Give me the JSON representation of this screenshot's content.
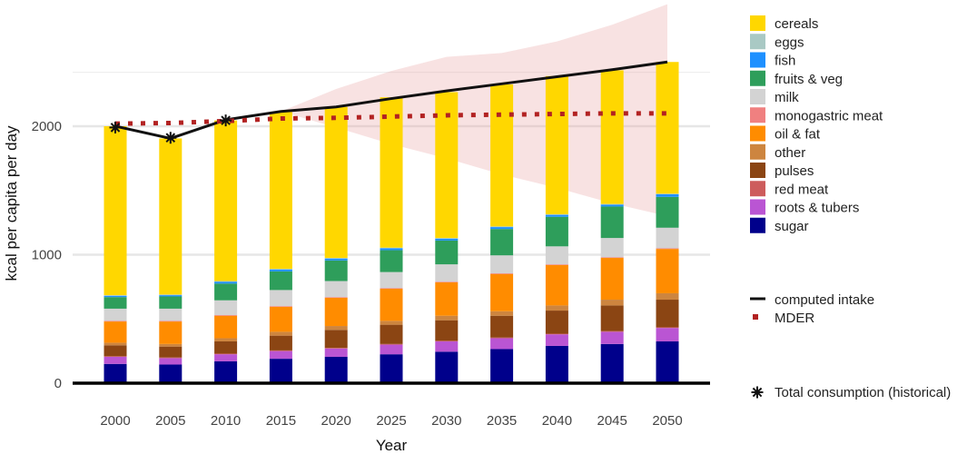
{
  "chart_data": {
    "type": "bar",
    "xlabel": "Year",
    "ylabel": "kcal per capita per day",
    "ylim": [
      0,
      2500
    ],
    "yticks": [
      0,
      1000,
      2000
    ],
    "grid": true,
    "legend_position": "right",
    "categories": [
      "2000",
      "2005",
      "2010",
      "2015",
      "2020",
      "2025",
      "2030",
      "2035",
      "2040",
      "2045",
      "2050"
    ],
    "series": [
      {
        "name": "sugar",
        "color": "#00008B",
        "values": [
          150,
          145,
          170,
          190,
          205,
          225,
          245,
          265,
          290,
          305,
          325
        ]
      },
      {
        "name": "roots & tubers",
        "color": "#BA55D3",
        "values": [
          55,
          50,
          55,
          60,
          65,
          75,
          80,
          85,
          90,
          95,
          105
        ]
      },
      {
        "name": "red meat",
        "color": "#CD5C5C",
        "values": [
          5,
          5,
          5,
          5,
          5,
          5,
          5,
          5,
          5,
          5,
          5
        ]
      },
      {
        "name": "pulses",
        "color": "#8B4513",
        "values": [
          85,
          85,
          95,
          115,
          140,
          150,
          160,
          170,
          180,
          200,
          215
        ]
      },
      {
        "name": "other",
        "color": "#CD853F",
        "values": [
          20,
          20,
          25,
          30,
          30,
          30,
          35,
          35,
          40,
          45,
          50
        ]
      },
      {
        "name": "oil & fat",
        "color": "#FF8C00",
        "values": [
          165,
          175,
          175,
          195,
          220,
          250,
          260,
          290,
          315,
          325,
          345
        ]
      },
      {
        "name": "monogastric meat",
        "color": "#F08080",
        "values": [
          5,
          5,
          5,
          5,
          5,
          5,
          5,
          5,
          5,
          5,
          5
        ]
      },
      {
        "name": "milk",
        "color": "#D3D3D3",
        "values": [
          95,
          95,
          115,
          125,
          125,
          125,
          135,
          140,
          140,
          150,
          160
        ]
      },
      {
        "name": "fruits & veg",
        "color": "#2E9E5B",
        "values": [
          90,
          95,
          130,
          145,
          160,
          170,
          185,
          205,
          230,
          245,
          240
        ]
      },
      {
        "name": "fish",
        "color": "#1E90FF",
        "values": [
          10,
          10,
          15,
          15,
          15,
          15,
          15,
          15,
          15,
          15,
          20
        ]
      },
      {
        "name": "eggs",
        "color": "#A9C9C4",
        "values": [
          5,
          5,
          5,
          5,
          5,
          5,
          5,
          5,
          5,
          5,
          5
        ]
      },
      {
        "name": "cereals",
        "color": "#FFD700",
        "values": [
          1315,
          1215,
          1250,
          1220,
          1175,
          1170,
          1135,
          1105,
          1075,
          1040,
          1025
        ]
      }
    ],
    "legend_order": [
      "cereals",
      "eggs",
      "fish",
      "fruits & veg",
      "milk",
      "monogastric meat",
      "oil & fat",
      "other",
      "pulses",
      "red meat",
      "roots & tubers",
      "sugar"
    ],
    "lines": [
      {
        "name": "computed intake",
        "color": "#111111",
        "style": "solid",
        "values": [
          2000,
          1905,
          2050,
          2115,
          2150,
          2215,
          2275,
          2330,
          2385,
          2440,
          2500
        ]
      },
      {
        "name": "MDER",
        "color": "#B22222",
        "style": "dotted",
        "values": [
          2020,
          2025,
          2040,
          2060,
          2065,
          2075,
          2085,
          2090,
          2095,
          2100,
          2100
        ]
      }
    ],
    "markers": {
      "name": "Total consumption (historical)",
      "symbol": "asterisk",
      "x": [
        "2000",
        "2005",
        "2010"
      ],
      "values": [
        1990,
        1910,
        2045
      ]
    },
    "band": {
      "color": "#E8A6A6",
      "x": [
        "2015",
        "2020",
        "2025",
        "2030",
        "2035",
        "2040",
        "2045",
        "2050"
      ],
      "lower": [
        2115,
        1990,
        1860,
        1750,
        1625,
        1520,
        1400,
        1300
      ],
      "upper": [
        2115,
        2290,
        2430,
        2540,
        2570,
        2660,
        2790,
        2950
      ]
    }
  }
}
